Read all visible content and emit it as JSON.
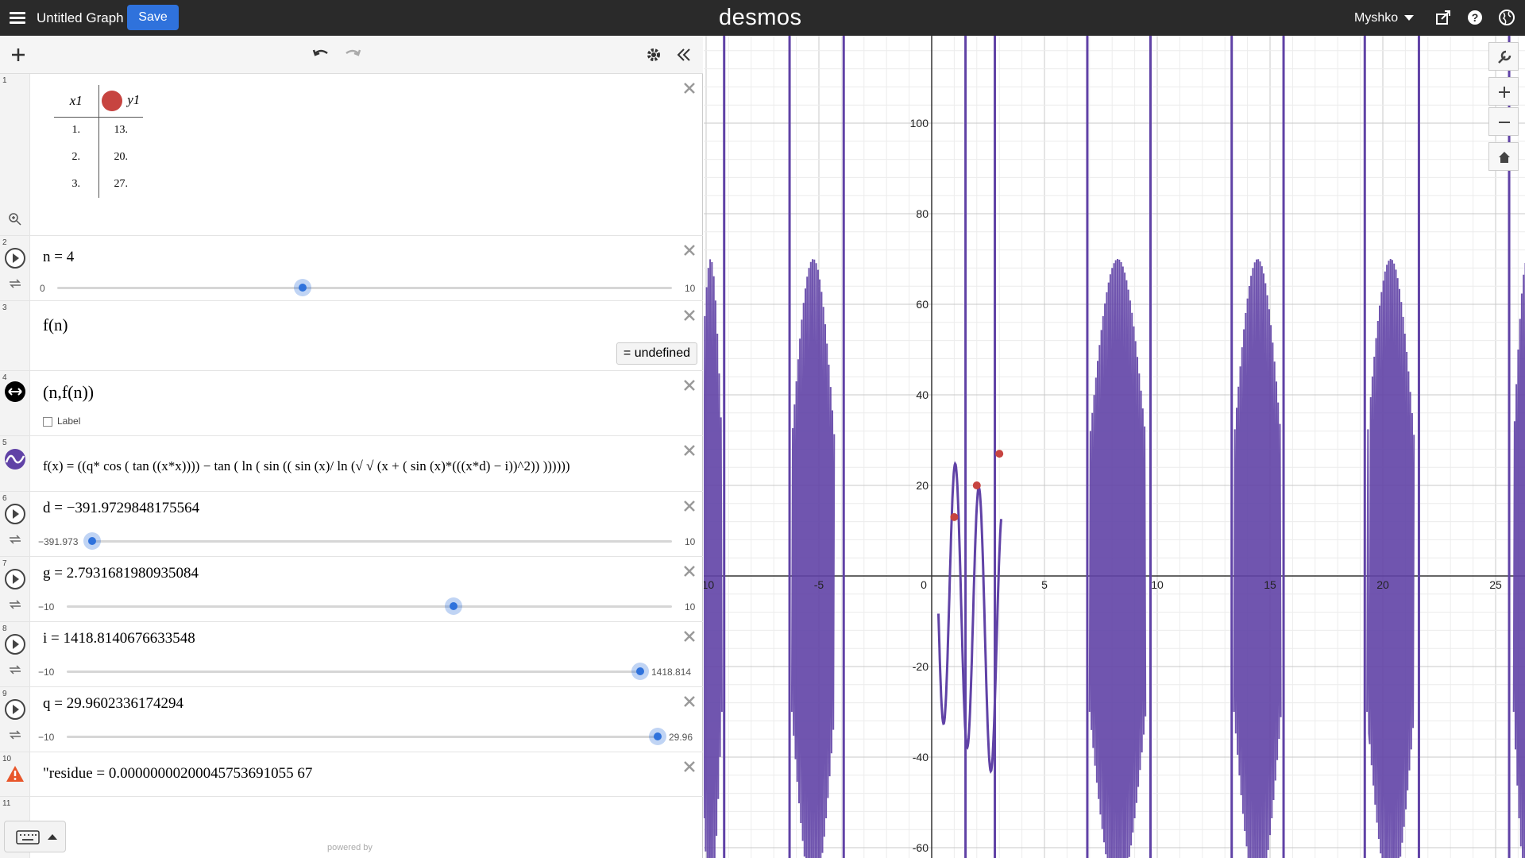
{
  "header": {
    "title": "Untitled Graph",
    "save_label": "Save",
    "logo": "desmos",
    "user": "Myshko"
  },
  "expressions": [
    {
      "num": "1",
      "type": "table",
      "headers": [
        "x1",
        "y1"
      ],
      "rows": [
        [
          "1.",
          "13."
        ],
        [
          "2.",
          "20."
        ],
        [
          "3.",
          "27."
        ]
      ]
    },
    {
      "num": "2",
      "type": "slider",
      "text": "n = 4",
      "min": "0",
      "max": "10",
      "value": 4
    },
    {
      "num": "3",
      "type": "expression",
      "text": "f(n)",
      "result": "undefined"
    },
    {
      "num": "4",
      "type": "point",
      "text": "(n,f(n))",
      "label_option": "Label"
    },
    {
      "num": "5",
      "type": "function",
      "text": "f(x) = ((q* cos ( tan ((x*x)))) − tan ( ln ( sin (( sin (x)/ ln (√ √ (x + ( sin (x)*(((x*d) − i))^2)) ))))))"
    },
    {
      "num": "6",
      "type": "slider",
      "text": "d = −391.9729848175564",
      "min": "−391.973",
      "max": "10",
      "value": -391.973
    },
    {
      "num": "7",
      "type": "slider",
      "text": "g = 2.7931681980935084",
      "min": "−10",
      "max": "10",
      "value": 2.793
    },
    {
      "num": "8",
      "type": "slider",
      "text": "i = 1418.8140676633548",
      "min": "−10",
      "max": "1418.814",
      "value": 1418.814
    },
    {
      "num": "9",
      "type": "slider",
      "text": "q = 29.9602336174294",
      "min": "−10",
      "max": "29.96",
      "value": 29.96
    },
    {
      "num": "10",
      "type": "warning",
      "text": "\"residue = 0.00000000200045753691055 67"
    },
    {
      "num": "11",
      "type": "empty"
    }
  ],
  "powered_by": "powered by",
  "graph": {
    "x_ticks": [
      "-10",
      "-5",
      "0",
      "5",
      "10",
      "15",
      "20",
      "25"
    ],
    "y_ticks": [
      "100",
      "80",
      "60",
      "40",
      "20",
      "-20",
      "-40",
      "-60"
    ],
    "points": [
      [
        1,
        13
      ],
      [
        2,
        20
      ],
      [
        3,
        27
      ]
    ],
    "curve_color": "#6042a6",
    "point_color": "#c74440"
  },
  "colors": {
    "accent": "#2f72dc",
    "header": "#2a2a2a",
    "warning": "#e8562a"
  }
}
